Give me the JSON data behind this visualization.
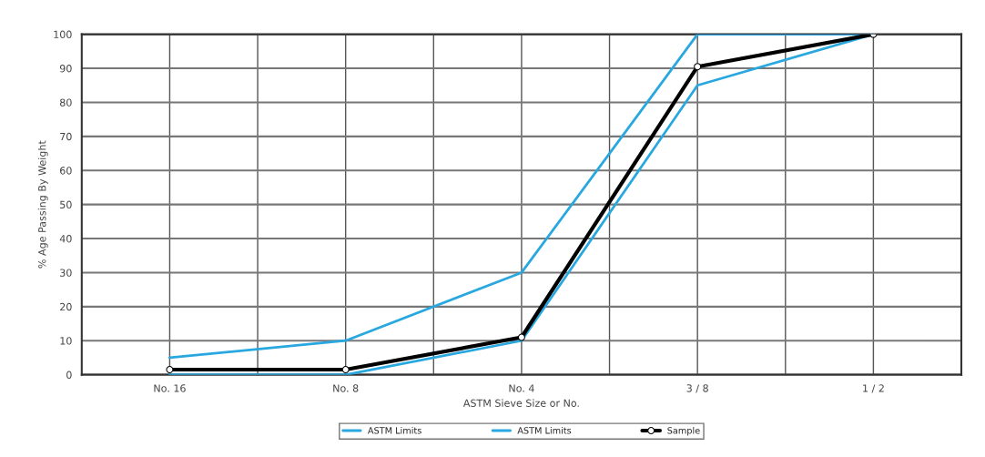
{
  "chart_data": {
    "type": "line",
    "xlabel": "ASTM Sieve Size or No.",
    "ylabel": "% Age Passing By Weight",
    "categories": [
      "No. 16",
      "No. 8",
      "No. 4",
      "3 / 8",
      "1 / 2"
    ],
    "series": [
      {
        "name": "ASTM Limits",
        "color": "#29a8e0",
        "values": [
          5,
          10,
          30,
          100,
          100
        ],
        "marker": "none"
      },
      {
        "name": "ASTM Limits",
        "color": "#29a8e0",
        "values": [
          0,
          0,
          10,
          85,
          100
        ],
        "marker": "none"
      },
      {
        "name": "Sample",
        "color": "#000000",
        "values": [
          1.5,
          1.5,
          11,
          90.5,
          100
        ],
        "marker": "circle"
      }
    ],
    "ylim": [
      0,
      100
    ],
    "yticks": [
      0,
      10,
      20,
      30,
      40,
      50,
      60,
      70,
      80,
      90,
      100
    ],
    "grid": true,
    "legend": "bottom"
  }
}
